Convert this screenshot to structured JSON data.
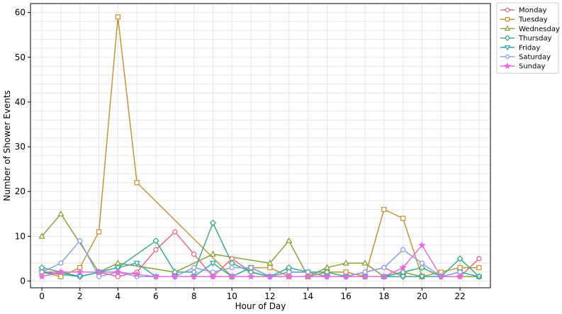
{
  "chart_data": {
    "type": "line",
    "title": "",
    "xlabel": "Hour of Day",
    "ylabel": "Number of Shower Events",
    "xlim": [
      -0.6,
      23.6
    ],
    "ylim": [
      -1.5,
      62
    ],
    "xticks": [
      0,
      2,
      4,
      6,
      8,
      10,
      12,
      14,
      16,
      18,
      20,
      22
    ],
    "yticks": [
      0,
      10,
      20,
      30,
      40,
      50,
      60
    ],
    "grid": true,
    "legend_position": "outside-top-right",
    "x": [
      0,
      1,
      2,
      3,
      4,
      5,
      6,
      7,
      8,
      9,
      10,
      11,
      12,
      13,
      14,
      15,
      16,
      17,
      18,
      19,
      20,
      21,
      22,
      23
    ],
    "series": [
      {
        "name": "Monday",
        "color": "#e8697f",
        "marker": "circle",
        "values": [
          2,
          2,
          1,
          2,
          1,
          2,
          7,
          11,
          6,
          1,
          5,
          2,
          1,
          2,
          2,
          1,
          1,
          2,
          3,
          1,
          1,
          1,
          1,
          5
        ]
      },
      {
        "name": "Tuesday",
        "color": "#c39435",
        "marker": "square",
        "values": [
          2,
          1,
          3,
          11,
          59,
          22,
          null,
          null,
          null,
          null,
          1,
          3,
          3,
          1,
          1,
          2,
          2,
          1,
          16,
          14,
          1,
          2,
          3,
          3
        ]
      },
      {
        "name": "Wednesday",
        "color": "#8da037",
        "marker": "triangle-up",
        "values": [
          10,
          15,
          null,
          2,
          4,
          null,
          null,
          2,
          null,
          6,
          null,
          null,
          4,
          9,
          1,
          3,
          4,
          4,
          1,
          2,
          1,
          null,
          null,
          1
        ]
      },
      {
        "name": "Thursday",
        "color": "#3aae82",
        "marker": "diamond",
        "values": [
          3,
          null,
          1,
          2,
          3,
          null,
          9,
          2,
          2,
          13,
          4,
          2,
          1,
          3,
          2,
          2,
          1,
          1,
          1,
          2,
          3,
          1,
          5,
          1
        ]
      },
      {
        "name": "Friday",
        "color": "#37a9b4",
        "marker": "triangle-down",
        "values": [
          2,
          null,
          1,
          2,
          3,
          4,
          1,
          1,
          1,
          4,
          1,
          3,
          1,
          2,
          2,
          1,
          1,
          1,
          1,
          1,
          1,
          1,
          2,
          1
        ]
      },
      {
        "name": "Saturday",
        "color": "#8b9ce8",
        "marker": "circle",
        "values": [
          2,
          4,
          9,
          1,
          2,
          1,
          1,
          1,
          3,
          2,
          3,
          3,
          1,
          2,
          2,
          1,
          1,
          2,
          3,
          7,
          4,
          1,
          2,
          null
        ]
      },
      {
        "name": "Sunday",
        "color": "#e76ae5",
        "marker": "star",
        "values": [
          1,
          2,
          2,
          2,
          2,
          1.5,
          1,
          1,
          1,
          1,
          1,
          1,
          1,
          1,
          1,
          1,
          1,
          1,
          1,
          3,
          8,
          1,
          1,
          null
        ]
      }
    ]
  }
}
